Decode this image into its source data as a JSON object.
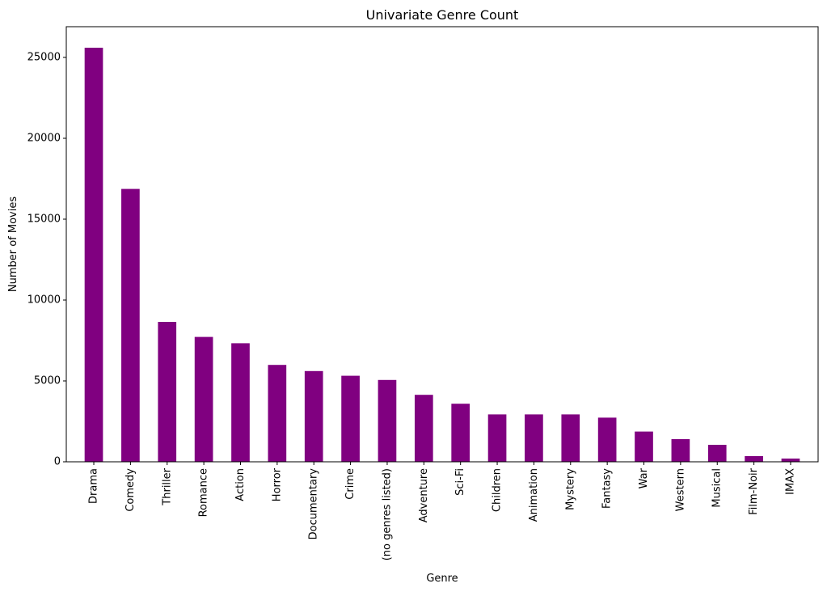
{
  "chart_data": {
    "type": "bar",
    "title": "Univariate Genre Count",
    "xlabel": "Genre",
    "ylabel": "Number of Movies",
    "categories": [
      "Drama",
      "Comedy",
      "Thriller",
      "Romance",
      "Action",
      "Horror",
      "Documentary",
      "Crime",
      "(no genres listed)",
      "Adventure",
      "Sci-Fi",
      "Children",
      "Animation",
      "Mystery",
      "Fantasy",
      "War",
      "Western",
      "Musical",
      "Film-Noir",
      "IMAX"
    ],
    "values": [
      25600,
      16870,
      8650,
      7720,
      7330,
      5990,
      5610,
      5320,
      5060,
      4140,
      3590,
      2930,
      2930,
      2930,
      2730,
      1870,
      1400,
      1050,
      350,
      200
    ],
    "yticks": [
      0,
      5000,
      10000,
      15000,
      20000,
      25000
    ],
    "ylim": [
      0,
      26900
    ],
    "bar_color": "#800080",
    "grid": false,
    "legend": "none"
  }
}
